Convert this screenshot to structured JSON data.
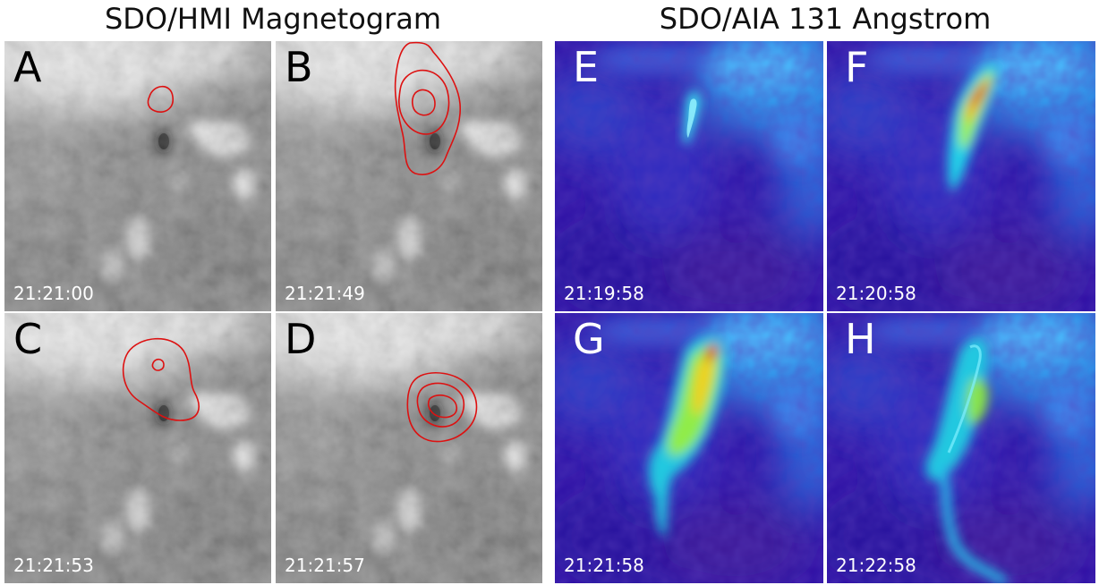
{
  "titles": {
    "left": "SDO/HMI Magnetogram",
    "right": "SDO/AIA 131 Angstrom"
  },
  "panels": [
    {
      "letter": "A",
      "time": "21:21:00"
    },
    {
      "letter": "B",
      "time": "21:21:49"
    },
    {
      "letter": "C",
      "time": "21:21:53"
    },
    {
      "letter": "D",
      "time": "21:21:57"
    },
    {
      "letter": "E",
      "time": "21:19:58"
    },
    {
      "letter": "F",
      "time": "21:20:58"
    },
    {
      "letter": "G",
      "time": "21:21:58"
    },
    {
      "letter": "H",
      "time": "21:22:58"
    }
  ],
  "colors": {
    "contour": "#dd1111",
    "aia_background": "#2a10a8",
    "hmi_background": "#7a7a7a"
  }
}
